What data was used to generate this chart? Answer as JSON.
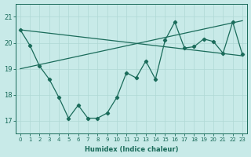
{
  "x": [
    0,
    1,
    2,
    3,
    4,
    5,
    6,
    7,
    8,
    9,
    10,
    11,
    12,
    13,
    14,
    15,
    16,
    17,
    18,
    19,
    20,
    21,
    22,
    23
  ],
  "y_main": [
    20.5,
    19.9,
    19.1,
    18.6,
    17.9,
    17.1,
    17.6,
    17.1,
    17.1,
    17.3,
    17.9,
    18.85,
    18.65,
    19.3,
    18.6,
    20.1,
    20.8,
    19.8,
    19.85,
    20.15,
    20.05,
    19.6,
    20.8,
    19.55
  ],
  "y_trend1_start": 20.5,
  "y_trend1_end": 19.5,
  "y_trend2_start": 19.0,
  "y_trend2_end": 20.85,
  "color": "#1a6b5a",
  "bg_color": "#c8eae8",
  "grid_color": "#afd8d4",
  "xlabel": "Humidex (Indice chaleur)",
  "ylim": [
    16.5,
    21.5
  ],
  "xlim": [
    -0.5,
    23.5
  ],
  "yticks": [
    17,
    18,
    19,
    20,
    21
  ],
  "xticks": [
    0,
    1,
    2,
    3,
    4,
    5,
    6,
    7,
    8,
    9,
    10,
    11,
    12,
    13,
    14,
    15,
    16,
    17,
    18,
    19,
    20,
    21,
    22,
    23
  ],
  "tick_label_fontsize": 5,
  "xlabel_fontsize": 6
}
